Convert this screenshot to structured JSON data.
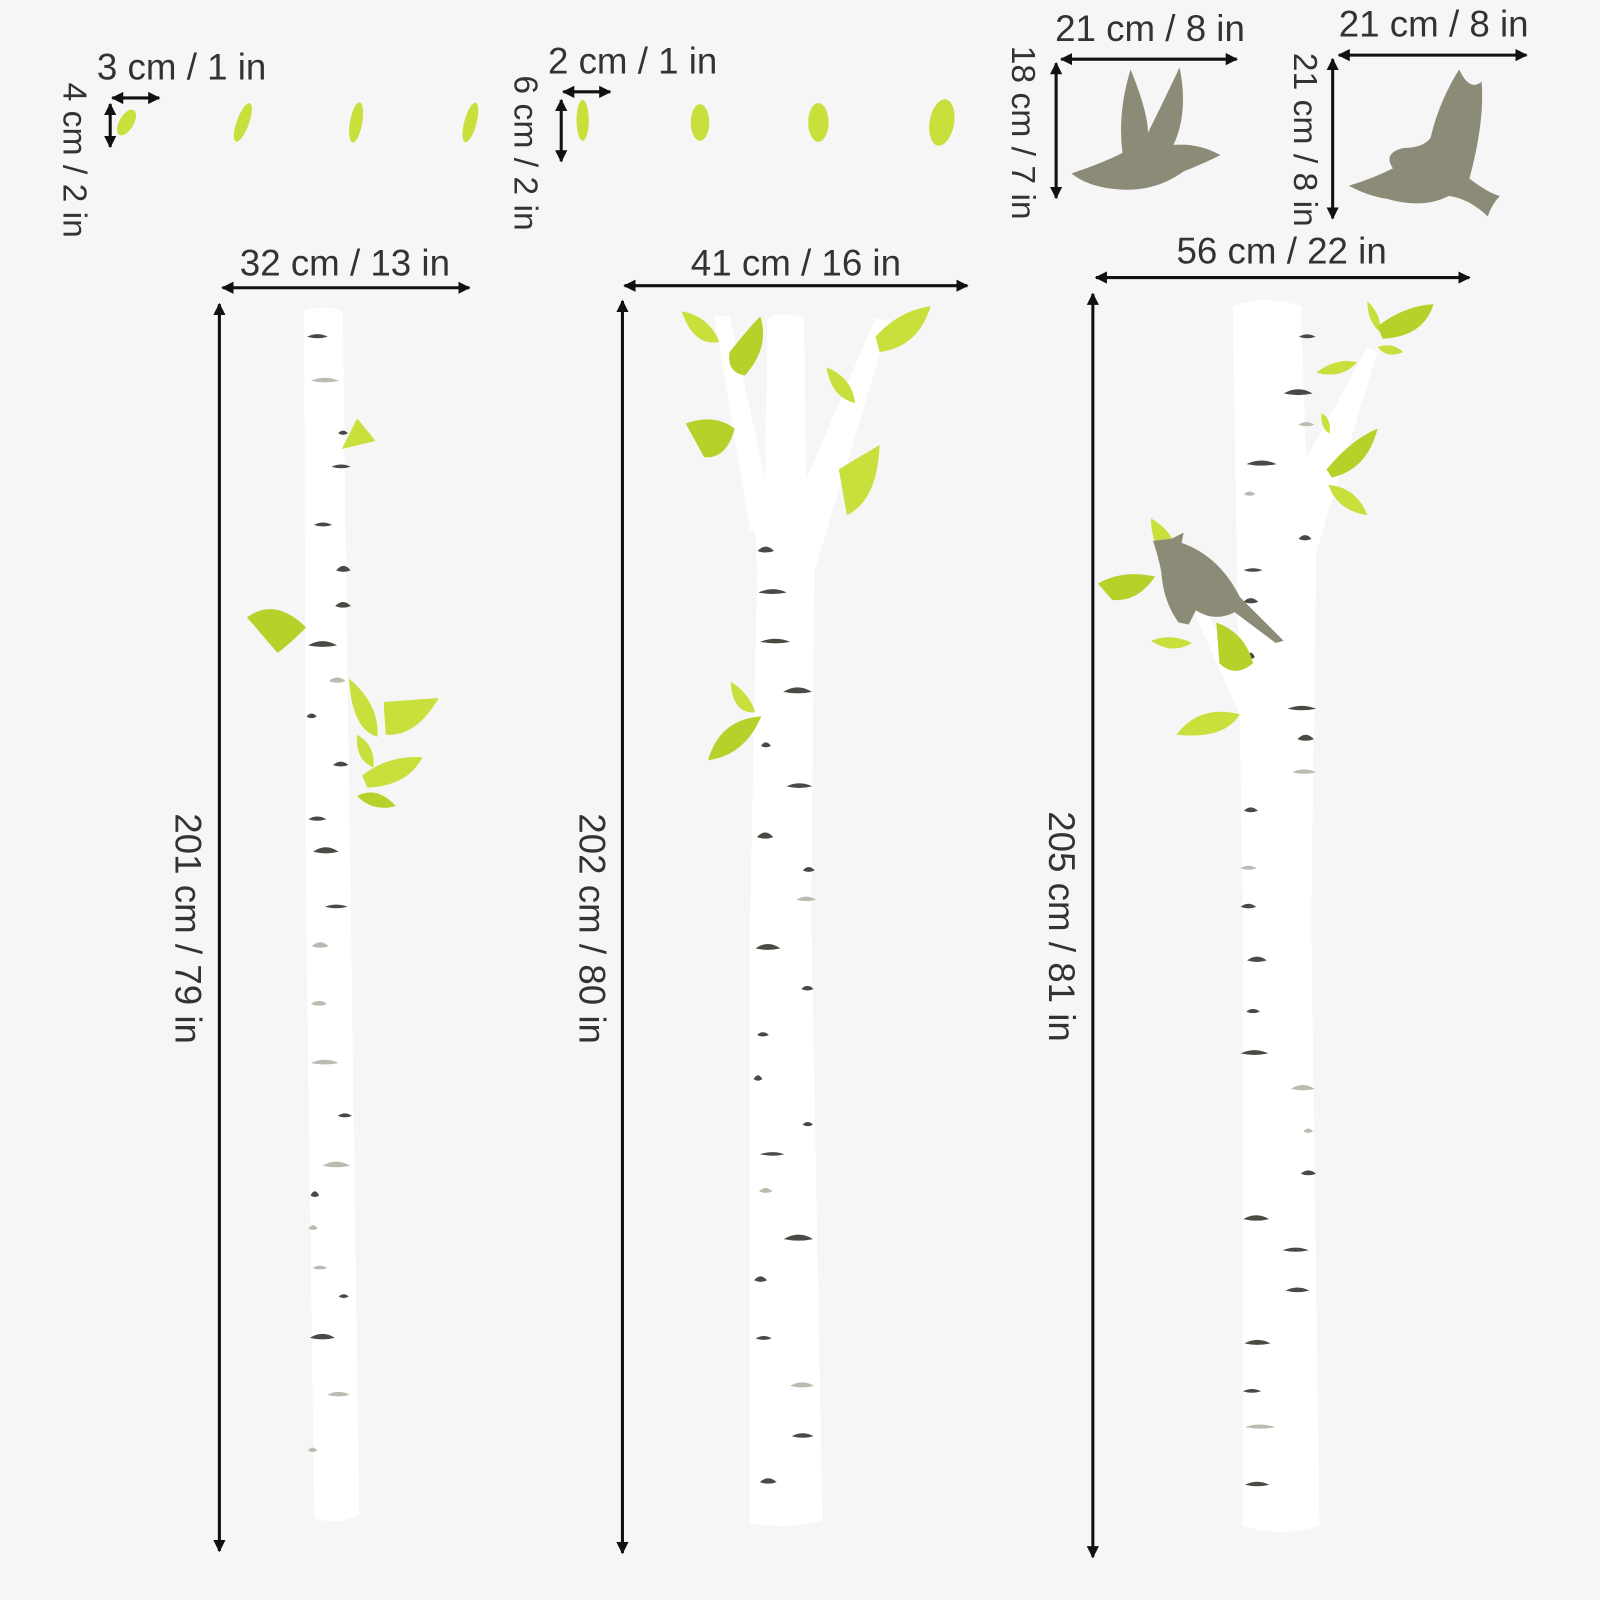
{
  "leaves_small": {
    "width": "3 cm / 1 in",
    "height": "4 cm / 2 in"
  },
  "leaves_large": {
    "width": "2 cm / 1 in",
    "height": "6 cm / 2 in"
  },
  "bird_1": {
    "width": "21 cm / 8 in",
    "height": "18 cm / 7 in"
  },
  "bird_2": {
    "width": "21 cm / 8 in",
    "height": "21 cm / 8 in"
  },
  "tree_1": {
    "width": "32 cm / 13 in",
    "height": "201 cm / 79 in"
  },
  "tree_2": {
    "width": "41 cm / 16 in",
    "height": "202 cm / 80 in"
  },
  "tree_3": {
    "width": "56 cm / 22 in",
    "height": "205 cm / 81 in"
  }
}
